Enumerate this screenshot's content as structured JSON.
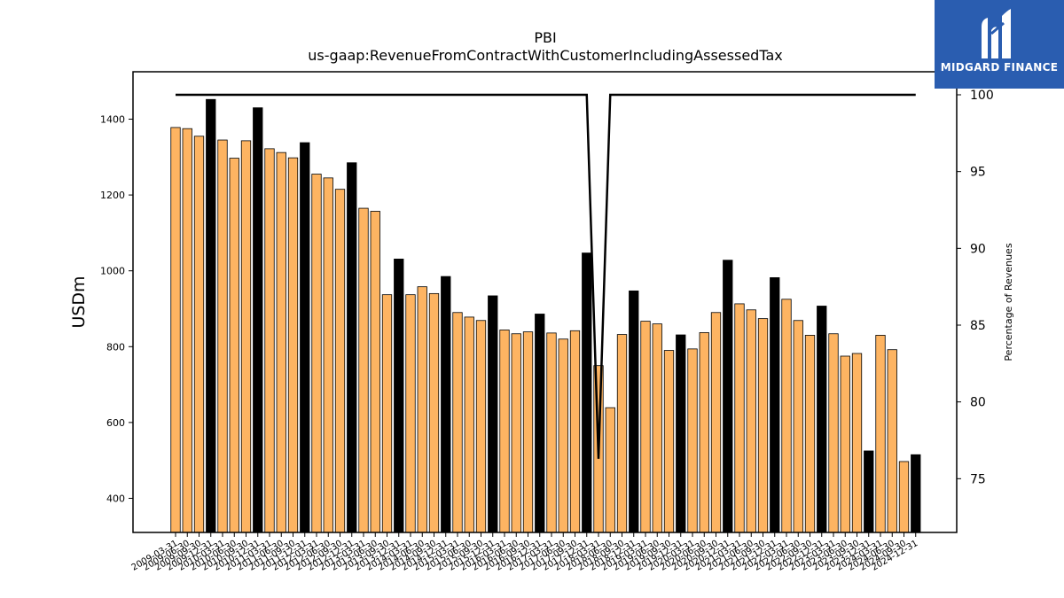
{
  "chart_data": {
    "type": "bar",
    "title": "PBI",
    "subtitle": "us-gaap:RevenueFromContractWithCustomerIncludingAssessedTax",
    "ylabel": "USDm",
    "y2label": "Percentage of Revenues",
    "ylim": [
      310,
      1525
    ],
    "y2lim": [
      71.5,
      101.5
    ],
    "yticks": [
      400,
      600,
      800,
      1000,
      1200,
      1400
    ],
    "y2ticks": [
      75,
      80,
      85,
      90,
      95,
      100
    ],
    "grid": false,
    "colors": {
      "quarter": "#fdb462",
      "annual": "#000000",
      "line": "#000000",
      "edge": "#000000"
    },
    "categories": [
      "2009-03-31",
      "2009-06-30",
      "2009-09-30",
      "2009-12-31",
      "2010-03-31",
      "2010-06-30",
      "2010-09-30",
      "2010-12-31",
      "2011-03-31",
      "2011-06-30",
      "2011-09-30",
      "2011-12-31",
      "2012-03-31",
      "2012-06-30",
      "2012-09-30",
      "2012-12-31",
      "2013-03-31",
      "2013-06-30",
      "2013-09-30",
      "2013-12-31",
      "2014-03-31",
      "2014-06-30",
      "2014-09-30",
      "2014-12-31",
      "2015-03-31",
      "2015-06-30",
      "2015-09-30",
      "2015-12-31",
      "2016-03-31",
      "2016-06-30",
      "2016-09-30",
      "2016-12-31",
      "2017-03-31",
      "2017-06-30",
      "2017-09-30",
      "2017-12-31",
      "2018-03-31",
      "2018-06-30",
      "2018-09-30",
      "2018-12-31",
      "2019-03-31",
      "2019-06-30",
      "2019-09-30",
      "2019-12-31",
      "2020-03-31",
      "2020-06-30",
      "2020-09-30",
      "2020-12-31",
      "2021-03-31",
      "2021-06-30",
      "2021-09-30",
      "2021-12-31",
      "2022-03-31",
      "2022-06-30",
      "2022-09-30",
      "2022-12-31",
      "2023-03-31",
      "2023-06-30",
      "2023-09-30",
      "2023-12-31",
      "2024-03-31",
      "2024-06-30",
      "2024-09-30",
      "2024-12-31"
    ],
    "values": [
      1378,
      1375,
      1355,
      1452,
      1345,
      1297,
      1343,
      1430,
      1322,
      1312,
      1298,
      1338,
      1255,
      1245,
      1215,
      1285,
      1165,
      1157,
      937,
      1031,
      937,
      958,
      940,
      985,
      890,
      878,
      869,
      934,
      844,
      834,
      839,
      886,
      836,
      820,
      842,
      1047,
      750,
      639,
      832,
      947,
      867,
      860,
      790,
      831,
      794,
      837,
      890,
      1028,
      913,
      897,
      874,
      982,
      925,
      869,
      830,
      907,
      834,
      775,
      782,
      525,
      830,
      792,
      497,
      515
    ],
    "annual_flags": [
      0,
      0,
      0,
      1,
      0,
      0,
      0,
      1,
      0,
      0,
      0,
      1,
      0,
      0,
      0,
      1,
      0,
      0,
      0,
      1,
      0,
      0,
      0,
      1,
      0,
      0,
      0,
      1,
      0,
      0,
      0,
      1,
      0,
      0,
      0,
      1,
      0,
      0,
      0,
      1,
      0,
      0,
      0,
      1,
      0,
      0,
      0,
      1,
      0,
      0,
      0,
      1,
      0,
      0,
      0,
      1,
      0,
      0,
      0,
      1,
      0,
      0,
      0,
      1
    ],
    "line_series": {
      "values": [
        100,
        100,
        100,
        100,
        100,
        100,
        100,
        100,
        100,
        100,
        100,
        100,
        100,
        100,
        100,
        100,
        100,
        100,
        100,
        100,
        100,
        100,
        100,
        100,
        100,
        100,
        100,
        100,
        100,
        100,
        100,
        100,
        100,
        100,
        100,
        100,
        76.3,
        100,
        100,
        100,
        100,
        100,
        100,
        100,
        100,
        100,
        100,
        100,
        100,
        100,
        100,
        100,
        100,
        100,
        100,
        100,
        100,
        100,
        100,
        100,
        100,
        100,
        100,
        100
      ]
    }
  },
  "logo": {
    "text": "MIDGARD FINANCE"
  }
}
